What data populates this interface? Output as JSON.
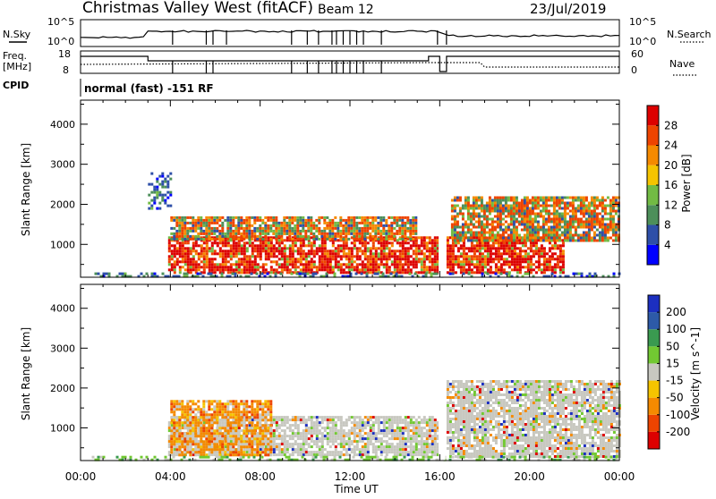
{
  "header": {
    "station": "Christmas Valley West (fitACF)",
    "beam": "Beam 12",
    "date": "23/Jul/2019"
  },
  "noise_panel": {
    "left_label": "N.Sky",
    "right_label": "N.Search",
    "left_ticks": [
      "10^5",
      "10^0"
    ],
    "right_ticks": [
      "10^5",
      "10^0"
    ]
  },
  "freq_panel": {
    "left_label_1": "Freq.",
    "left_label_2": "[MHz]",
    "right_label": "Nave",
    "left_ticks": [
      "18",
      "8"
    ],
    "right_ticks": [
      "60",
      "0"
    ]
  },
  "cpid": {
    "label": "CPID",
    "text": "normal (fast) -151 RF"
  },
  "colors": {
    "power_scale": [
      "#0000ff",
      "#2e4fa8",
      "#4d8f5a",
      "#72bb44",
      "#f5c400",
      "#f58a00",
      "#ee4400",
      "#dd0000"
    ],
    "velocity_scale": [
      "#dd0000",
      "#ee4400",
      "#f58a00",
      "#f5c400",
      "#c8c8c0",
      "#72c832",
      "#3a9a50",
      "#2d5aa8",
      "#1c2fc0"
    ]
  },
  "chart_data": [
    {
      "type": "heatmap",
      "panel": "power",
      "xlabel": "",
      "ylabel": "Slant Range [km]",
      "x_range_hours": [
        0,
        24
      ],
      "ylim": [
        180,
        4600
      ],
      "y_ticks": [
        "4000",
        "3000",
        "2000",
        "1000"
      ],
      "colorbar": {
        "label": "Power [dB]",
        "ticks": [
          "28",
          "24",
          "20",
          "16",
          "12",
          "8",
          "4"
        ],
        "range": [
          0,
          32
        ]
      },
      "regions": [
        {
          "t0": 3.9,
          "t1": 15.9,
          "r0": 300,
          "r1": 1200,
          "level": "high"
        },
        {
          "t0": 16.3,
          "t1": 21.5,
          "r0": 300,
          "r1": 1200,
          "level": "high"
        },
        {
          "t0": 4.0,
          "t1": 15.0,
          "r0": 1100,
          "r1": 1700,
          "level": "mid"
        },
        {
          "t0": 16.5,
          "t1": 24.0,
          "r0": 1100,
          "r1": 2200,
          "level": "mid"
        },
        {
          "t0": 0.5,
          "t1": 24.0,
          "r0": 200,
          "r1": 300,
          "level": "low"
        },
        {
          "t0": 3.0,
          "t1": 4.0,
          "r0": 1900,
          "r1": 2800,
          "level": "low"
        }
      ]
    },
    {
      "type": "heatmap",
      "panel": "velocity",
      "xlabel": "Time UT",
      "ylabel": "Slant Range [km]",
      "x_ticks": [
        "00:00",
        "04:00",
        "08:00",
        "12:00",
        "16:00",
        "20:00",
        "00:00"
      ],
      "x_range_hours": [
        0,
        24
      ],
      "ylim": [
        180,
        4600
      ],
      "y_ticks": [
        "4000",
        "3000",
        "2000",
        "1000"
      ],
      "colorbar": {
        "label": "Velocity [m s^-1]",
        "ticks": [
          "200",
          "100",
          "50",
          "15",
          "-15",
          "-50",
          "-100",
          "-200"
        ],
        "range": [
          -250,
          250
        ]
      },
      "regions": [
        {
          "t0": 3.9,
          "t1": 15.9,
          "r0": 300,
          "r1": 1300,
          "level": "near_zero"
        },
        {
          "t0": 16.3,
          "t1": 24.0,
          "r0": 300,
          "r1": 2200,
          "level": "near_zero"
        },
        {
          "t0": 4.0,
          "t1": 8.5,
          "r0": 300,
          "r1": 1700,
          "level": "negative"
        },
        {
          "t0": 0.5,
          "t1": 24.0,
          "r0": 200,
          "r1": 300,
          "level": "positive"
        }
      ]
    }
  ]
}
